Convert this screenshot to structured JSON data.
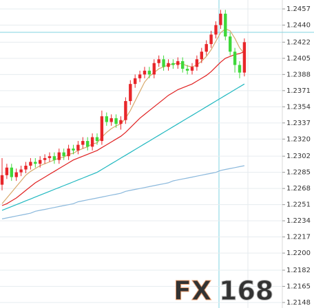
{
  "chart_data": {
    "type": "candlestick",
    "up_color": "#e8262a",
    "down_color": "#3fd83a",
    "open": [
      1.2272,
      1.2282,
      1.229,
      1.228,
      1.2285,
      1.2288,
      1.2292,
      1.2296,
      1.2294,
      1.2298,
      1.23,
      1.2302,
      1.2298,
      1.2306,
      1.2302,
      1.231,
      1.2308,
      1.2314,
      1.2318,
      1.2312,
      1.2322,
      1.2318,
      1.2344,
      1.2338,
      1.2342,
      1.2336,
      1.234,
      1.236,
      1.2378,
      1.2384,
      1.2388,
      1.2392,
      1.2388,
      1.24,
      1.2404,
      1.2396,
      1.24,
      1.2398,
      1.2402,
      1.2394,
      1.2392,
      1.2396,
      1.2404,
      1.2412,
      1.242,
      1.243,
      1.244,
      1.2452,
      1.2428,
      1.2412,
      1.2398,
      1.239
    ],
    "high": [
      1.23,
      1.2294,
      1.2294,
      1.2289,
      1.2292,
      1.2296,
      1.23,
      1.23,
      1.2302,
      1.2304,
      1.2306,
      1.2306,
      1.231,
      1.231,
      1.2314,
      1.2314,
      1.2318,
      1.2322,
      1.2322,
      1.2326,
      1.2326,
      1.235,
      1.2348,
      1.2346,
      1.2346,
      1.2344,
      1.2364,
      1.2382,
      1.2388,
      1.2392,
      1.2396,
      1.2396,
      1.2404,
      1.2408,
      1.2408,
      1.2404,
      1.2404,
      1.2406,
      1.2406,
      1.2398,
      1.24,
      1.2408,
      1.2416,
      1.2424,
      1.2434,
      1.2444,
      1.2456,
      1.2456,
      1.2432,
      1.2416,
      1.2402,
      1.2426
    ],
    "low": [
      1.2266,
      1.2278,
      1.2276,
      1.2276,
      1.2281,
      1.2284,
      1.2288,
      1.229,
      1.229,
      1.2294,
      1.2296,
      1.2294,
      1.2294,
      1.2298,
      1.2298,
      1.2304,
      1.2304,
      1.231,
      1.2308,
      1.2308,
      1.2314,
      1.2314,
      1.2334,
      1.2334,
      1.2332,
      1.233,
      1.2336,
      1.2356,
      1.2374,
      1.238,
      1.2384,
      1.2384,
      1.2384,
      1.2396,
      1.2392,
      1.2392,
      1.2394,
      1.2394,
      1.239,
      1.2388,
      1.2388,
      1.2392,
      1.24,
      1.2408,
      1.2416,
      1.2426,
      1.2436,
      1.2424,
      1.2408,
      1.239,
      1.2384,
      1.2386
    ],
    "close": [
      1.2282,
      1.229,
      1.228,
      1.2285,
      1.2288,
      1.2292,
      1.2296,
      1.2294,
      1.2298,
      1.23,
      1.2302,
      1.2298,
      1.2306,
      1.2302,
      1.231,
      1.2308,
      1.2314,
      1.2318,
      1.2312,
      1.2322,
      1.2318,
      1.2344,
      1.2338,
      1.2342,
      1.2336,
      1.234,
      1.236,
      1.2378,
      1.2384,
      1.2388,
      1.2392,
      1.2388,
      1.24,
      1.2404,
      1.2396,
      1.24,
      1.2398,
      1.2402,
      1.2394,
      1.2392,
      1.2396,
      1.2404,
      1.2412,
      1.242,
      1.243,
      1.244,
      1.2452,
      1.2428,
      1.2412,
      1.2398,
      1.239,
      1.2422
    ],
    "series": [
      {
        "color": "#d8a86a",
        "values": [
          1.2252,
          1.2258,
          1.2264,
          1.227,
          1.2276,
          1.2282,
          1.2286,
          1.2289,
          1.2292,
          1.2294,
          1.2296,
          1.2298,
          1.23,
          1.2301,
          1.2304,
          1.2305,
          1.2308,
          1.231,
          1.2312,
          1.2315,
          1.2316,
          1.2322,
          1.2327,
          1.2331,
          1.2334,
          1.2336,
          1.2342,
          1.235,
          1.236,
          1.237,
          1.238,
          1.2386,
          1.239,
          1.2394,
          1.2396,
          1.2398,
          1.2399,
          1.24,
          1.2399,
          1.2397,
          1.2396,
          1.2398,
          1.2402,
          1.2407,
          1.2414,
          1.2423,
          1.2432,
          1.2436,
          1.2434,
          1.2426,
          1.2416,
          1.241
        ]
      },
      {
        "color": "#e02020",
        "values": [
          1.225,
          1.2252,
          1.2255,
          1.2258,
          1.2262,
          1.2266,
          1.227,
          1.2274,
          1.2277,
          1.228,
          1.2283,
          1.2286,
          1.2289,
          1.2292,
          1.2295,
          1.2298,
          1.23,
          1.2302,
          1.2304,
          1.2306,
          1.2308,
          1.2311,
          1.2314,
          1.2317,
          1.232,
          1.2323,
          1.2327,
          1.2332,
          1.2337,
          1.2342,
          1.2346,
          1.235,
          1.2354,
          1.2358,
          1.2362,
          1.2366,
          1.2369,
          1.2372,
          1.2374,
          1.2376,
          1.2378,
          1.2381,
          1.2384,
          1.2387,
          1.2391,
          1.2396,
          1.2401,
          1.2405,
          1.2407,
          1.2409,
          1.241,
          1.2412
        ]
      },
      {
        "color": "#20b8c0",
        "values": [
          1.2245,
          1.2247,
          1.2249,
          1.2251,
          1.2253,
          1.2255,
          1.2257,
          1.2259,
          1.2261,
          1.2263,
          1.2265,
          1.2267,
          1.2269,
          1.2271,
          1.2273,
          1.2275,
          1.2277,
          1.2279,
          1.2281,
          1.2283,
          1.2285,
          1.2288,
          1.2291,
          1.2294,
          1.2297,
          1.23,
          1.2303,
          1.2306,
          1.2309,
          1.2312,
          1.2315,
          1.2318,
          1.2321,
          1.2324,
          1.2327,
          1.233,
          1.2333,
          1.2336,
          1.2339,
          1.2342,
          1.2345,
          1.2348,
          1.2351,
          1.2354,
          1.2357,
          1.236,
          1.2363,
          1.2366,
          1.2369,
          1.2372,
          1.2375,
          1.2378
        ]
      },
      {
        "color": "#8ab8dc",
        "values": [
          1.2236,
          1.2237,
          1.2238,
          1.2239,
          1.224,
          1.2241,
          1.2242,
          1.2244,
          1.2245,
          1.2246,
          1.2247,
          1.2248,
          1.2249,
          1.225,
          1.2251,
          1.2252,
          1.2254,
          1.2255,
          1.2256,
          1.2257,
          1.2258,
          1.2259,
          1.226,
          1.2261,
          1.2262,
          1.2263,
          1.2265,
          1.2266,
          1.2267,
          1.2268,
          1.2269,
          1.227,
          1.2271,
          1.2272,
          1.2273,
          1.2274,
          1.2276,
          1.2277,
          1.2278,
          1.2279,
          1.228,
          1.2281,
          1.2282,
          1.2283,
          1.2284,
          1.2285,
          1.2287,
          1.2288,
          1.2289,
          1.229,
          1.2291,
          1.2292
        ]
      }
    ],
    "ylim": [
      1.21422,
      1.24664
    ],
    "yticks": [
      {
        "value": 1.2457,
        "label": "1.2457"
      },
      {
        "value": 1.244,
        "label": "1.2440"
      },
      {
        "value": 1.2422,
        "label": "1.2422"
      },
      {
        "value": 1.2405,
        "label": "1.2405"
      },
      {
        "value": 1.2388,
        "label": "1.2388"
      },
      {
        "value": 1.2371,
        "label": "1.2371"
      },
      {
        "value": 1.2354,
        "label": "1.2354"
      },
      {
        "value": 1.2337,
        "label": "1.2337"
      },
      {
        "value": 1.232,
        "label": "1.2320"
      },
      {
        "value": 1.2302,
        "label": "1.2302"
      },
      {
        "value": 1.2285,
        "label": "1.2285"
      },
      {
        "value": 1.2268,
        "label": "1.2268"
      },
      {
        "value": 1.2251,
        "label": "1.2251"
      },
      {
        "value": 1.2234,
        "label": "1.2234"
      },
      {
        "value": 1.2217,
        "label": "1.2217"
      },
      {
        "value": 1.22,
        "label": "1.2200"
      },
      {
        "value": 1.2182,
        "label": "1.2182"
      },
      {
        "value": 1.2165,
        "label": "1.2165"
      },
      {
        "value": 1.2148,
        "label": "1.2148"
      }
    ],
    "grid": true,
    "watermark": {
      "prefix": "FX",
      "suffix": "168"
    }
  }
}
